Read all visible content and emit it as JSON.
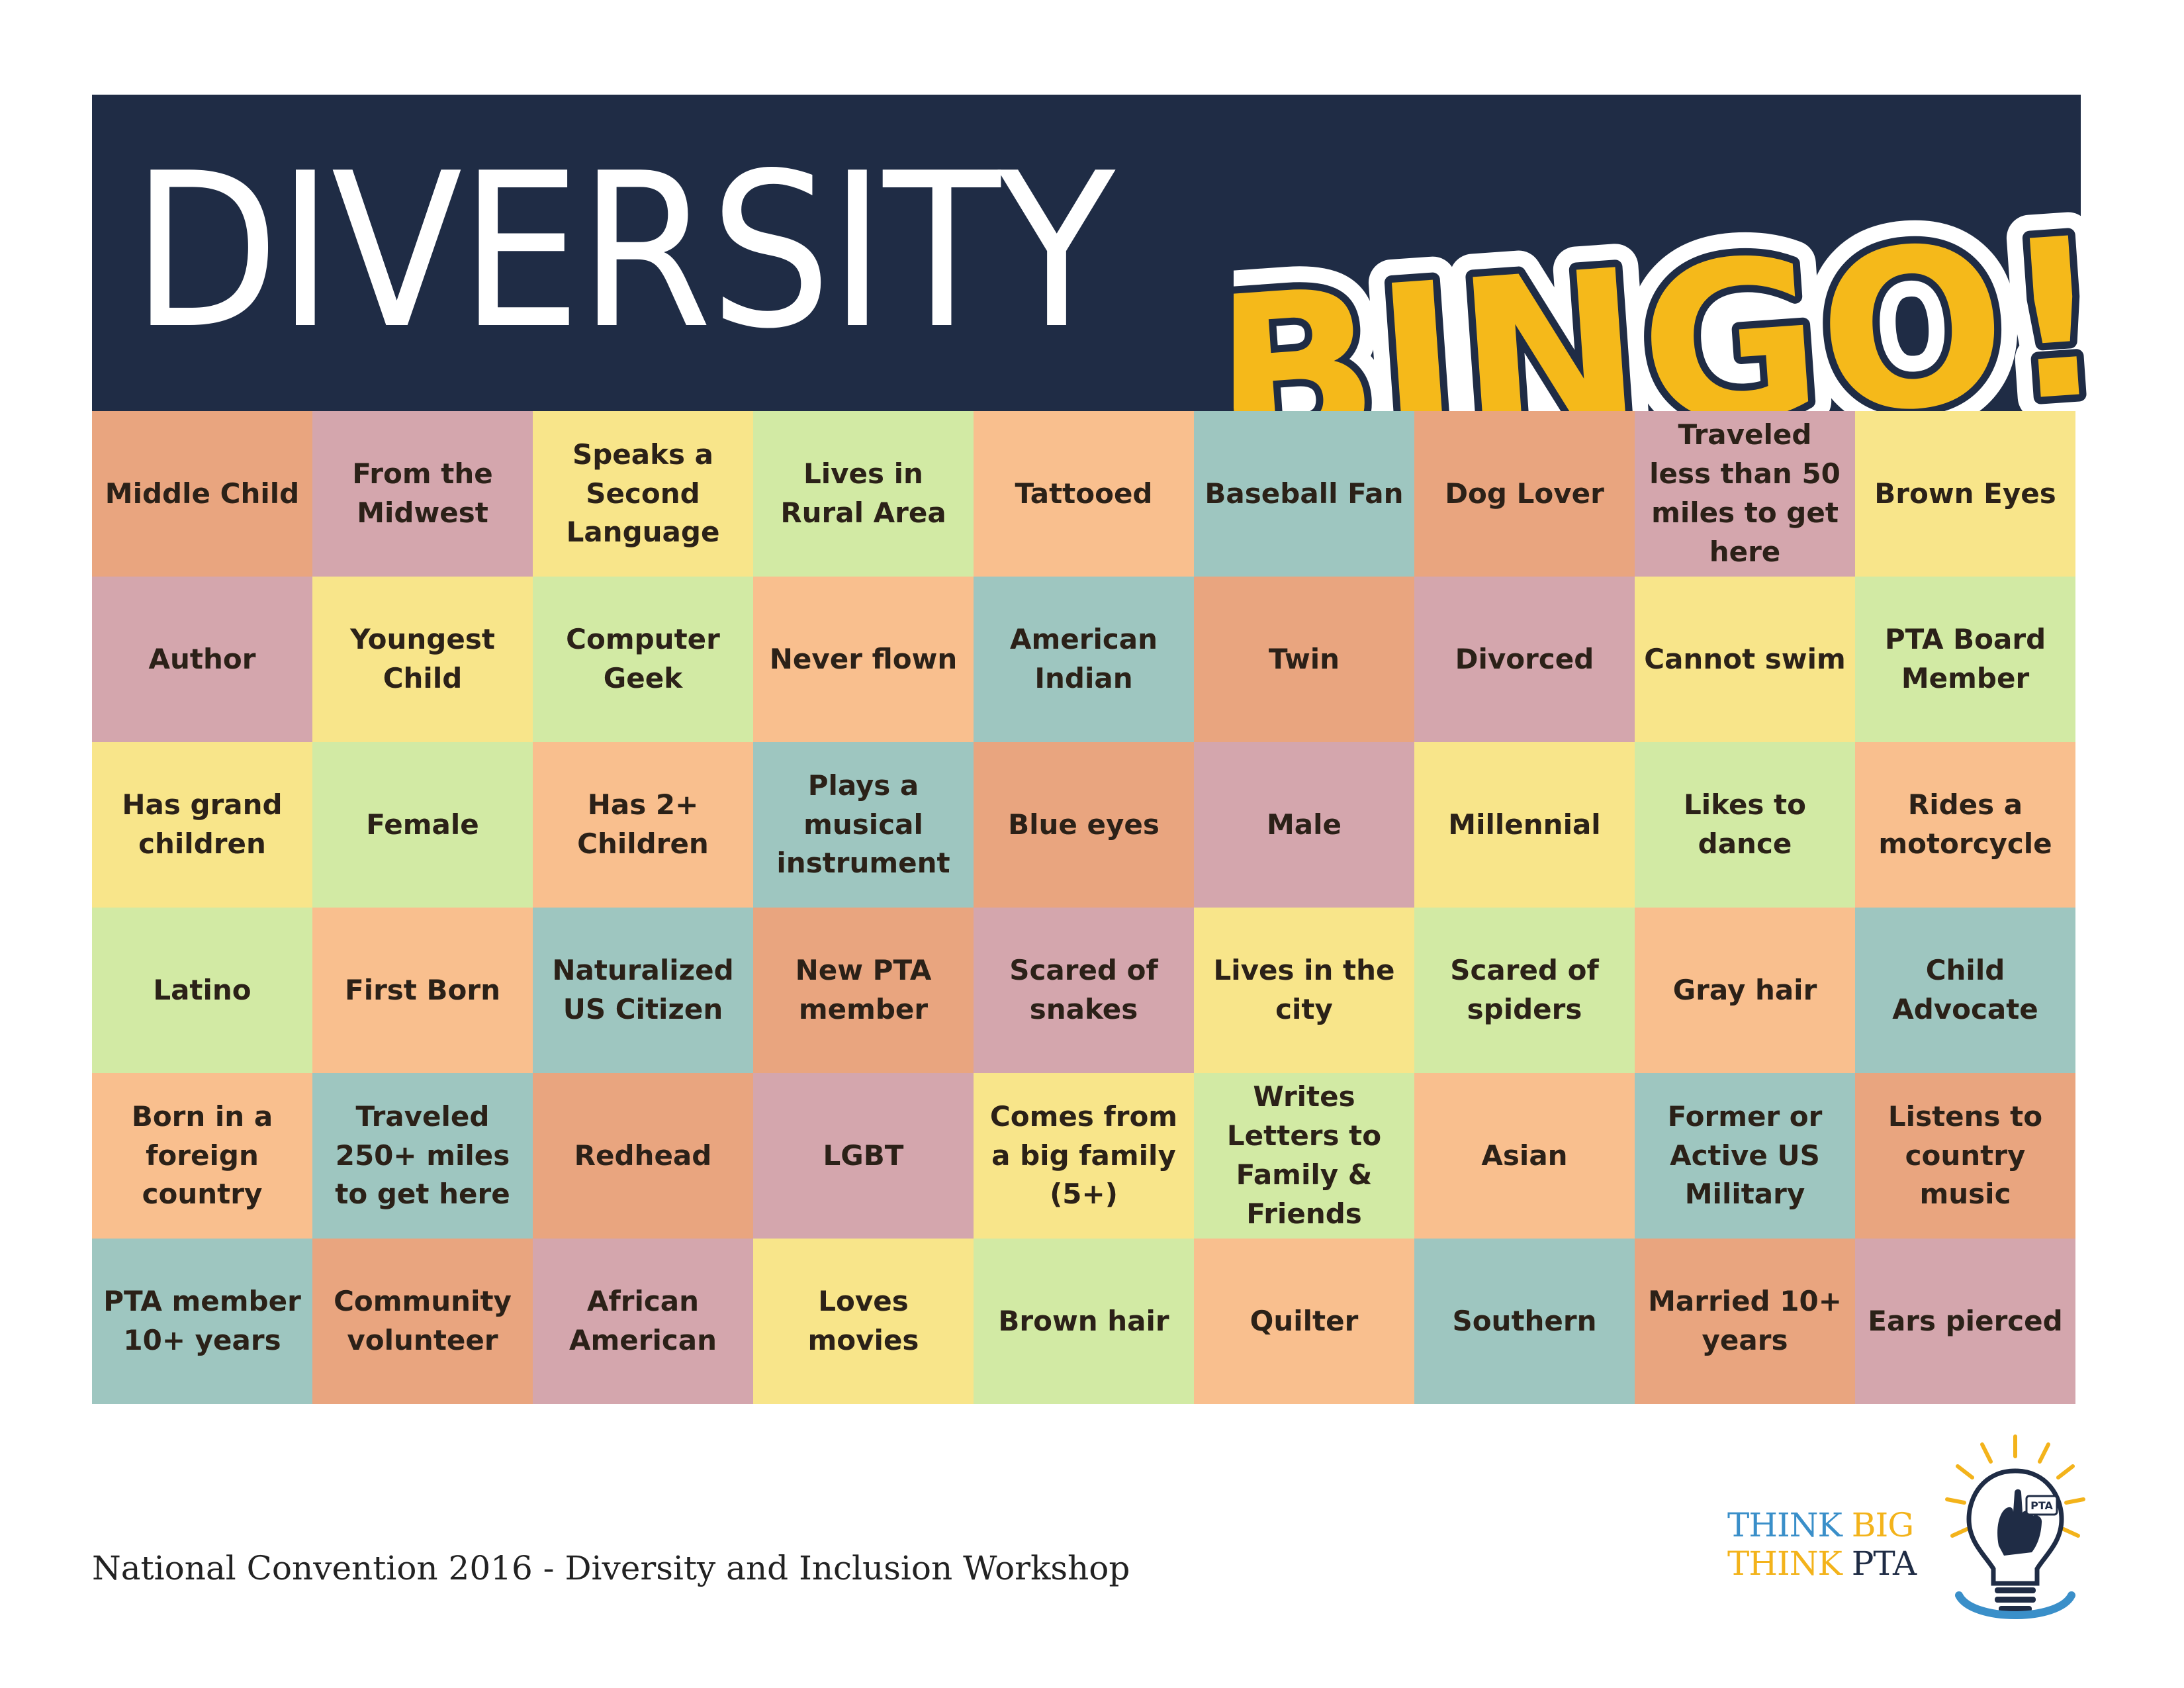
{
  "header": {
    "title": "DIVERSITY",
    "bingo": "BINGO!"
  },
  "board": [
    [
      {
        "text": "Middle Child",
        "color": "#e9a57f"
      },
      {
        "text": "From the Midwest",
        "color": "#d4a6ad"
      },
      {
        "text": "Speaks a Second Language",
        "color": "#f8e58a"
      },
      {
        "text": "Lives in Rural Area",
        "color": "#d2eaa4"
      },
      {
        "text": "Tattooed",
        "color": "#f9bf8e"
      },
      {
        "text": "Baseball Fan",
        "color": "#9ec6c0"
      },
      {
        "text": "Dog Lover",
        "color": "#e9a57f"
      },
      {
        "text": "Traveled less than 50 miles to get here",
        "color": "#d4a6ad"
      },
      {
        "text": "Brown Eyes",
        "color": "#f8e58a"
      }
    ],
    [
      {
        "text": "Author",
        "color": "#d4a6ad"
      },
      {
        "text": "Youngest Child",
        "color": "#f8e58a"
      },
      {
        "text": "Computer Geek",
        "color": "#d2eaa4"
      },
      {
        "text": "Never flown",
        "color": "#f9bf8e"
      },
      {
        "text": "American Indian",
        "color": "#9ec6c0"
      },
      {
        "text": "Twin",
        "color": "#e9a57f"
      },
      {
        "text": "Divorced",
        "color": "#d4a6ad"
      },
      {
        "text": "Cannot swim",
        "color": "#f8e58a"
      },
      {
        "text": "PTA Board Member",
        "color": "#d2eaa4"
      }
    ],
    [
      {
        "text": "Has grand children",
        "color": "#f8e58a"
      },
      {
        "text": "Female",
        "color": "#d2eaa4"
      },
      {
        "text": "Has 2+ Children",
        "color": "#f9bf8e"
      },
      {
        "text": "Plays a musical instrument",
        "color": "#9ec6c0"
      },
      {
        "text": "Blue eyes",
        "color": "#e9a57f"
      },
      {
        "text": "Male",
        "color": "#d4a6ad"
      },
      {
        "text": "Millennial",
        "color": "#f8e58a"
      },
      {
        "text": "Likes to dance",
        "color": "#d2eaa4"
      },
      {
        "text": "Rides a motorcycle",
        "color": "#f9bf8e"
      }
    ],
    [
      {
        "text": "Latino",
        "color": "#d2eaa4"
      },
      {
        "text": "First Born",
        "color": "#f9bf8e"
      },
      {
        "text": "Naturalized US Citizen",
        "color": "#9ec6c0"
      },
      {
        "text": "New PTA member",
        "color": "#e9a57f"
      },
      {
        "text": "Scared of snakes",
        "color": "#d4a6ad"
      },
      {
        "text": "Lives in the city",
        "color": "#f8e58a"
      },
      {
        "text": "Scared of spiders",
        "color": "#d2eaa4"
      },
      {
        "text": "Gray hair",
        "color": "#f9bf8e"
      },
      {
        "text": "Child Advocate",
        "color": "#9ec6c0"
      }
    ],
    [
      {
        "text": "Born in a foreign country",
        "color": "#f9bf8e"
      },
      {
        "text": "Traveled 250+ miles to get here",
        "color": "#9ec6c0"
      },
      {
        "text": "Redhead",
        "color": "#e9a57f"
      },
      {
        "text": "LGBT",
        "color": "#d4a6ad"
      },
      {
        "text": "Comes from a big family (5+)",
        "color": "#f8e58a"
      },
      {
        "text": "Writes Letters to Family & Friends",
        "color": "#d2eaa4"
      },
      {
        "text": "Asian",
        "color": "#f9bf8e"
      },
      {
        "text": "Former or Active US Military",
        "color": "#9ec6c0"
      },
      {
        "text": "Listens to country music",
        "color": "#e9a57f"
      }
    ],
    [
      {
        "text": "PTA member 10+ years",
        "color": "#9ec6c0"
      },
      {
        "text": "Community volunteer",
        "color": "#e9a57f"
      },
      {
        "text": "African American",
        "color": "#d4a6ad"
      },
      {
        "text": "Loves movies",
        "color": "#f8e58a"
      },
      {
        "text": "Brown hair",
        "color": "#d2eaa4"
      },
      {
        "text": "Quilter",
        "color": "#f9bf8e"
      },
      {
        "text": "Southern",
        "color": "#9ec6c0"
      },
      {
        "text": "Married 10+ years",
        "color": "#e9a57f"
      },
      {
        "text": "Ears pierced",
        "color": "#d4a6ad"
      }
    ]
  ],
  "footer": {
    "text": "National Convention 2016 - Diversity and Inclusion Workshop"
  },
  "logo": {
    "line1_a": "THINK",
    "line1_b": "BIG",
    "line2_a": "THINK",
    "line2_b": "PTA",
    "bulb_badge": "PTA",
    "icon": "lightbulb-hand-icon"
  },
  "colors": {
    "header_bg": "#1f2c45",
    "bingo_yellow": "#f5b91a",
    "logo_blue": "#3a8fc9",
    "logo_gold": "#f3b31b"
  }
}
